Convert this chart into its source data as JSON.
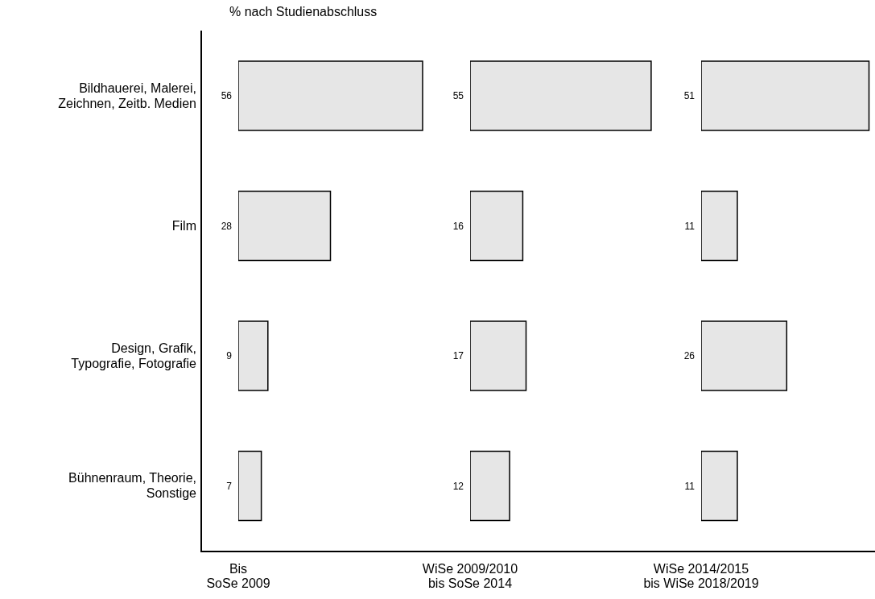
{
  "chart_data": [
    {
      "type": "bar",
      "orientation": "horizontal",
      "title": "% nach Studienabschluss",
      "xlabel": "Bis\nSoSe 2009",
      "categories": [
        "Bildhauerei, Malerei,\nZeichnen, Zeitb. Medien",
        "Film",
        "Design, Grafik,\nTypografie, Fotografie",
        "Bühnenraum, Theorie,\nSonstige"
      ],
      "values": [
        56,
        28,
        9,
        7
      ],
      "color": "#e6e6e6",
      "data_labels": true,
      "tick_labels": "y"
    },
    {
      "type": "bar",
      "orientation": "horizontal",
      "xlabel": "WiSe 2009/2010\nbis SoSe 2014",
      "categories": [
        null,
        null,
        null,
        null
      ],
      "values": [
        55,
        16,
        17,
        12
      ],
      "color": "#e6e6e6",
      "data_labels": true,
      "tick_labels": false
    },
    {
      "type": "bar",
      "orientation": "horizontal",
      "xlabel": "WiSe 2014/2015\nbis WiSe 2018/2019",
      "categories": [
        null,
        null,
        null,
        null
      ],
      "values": [
        51,
        11,
        26,
        11
      ],
      "color": "#e6e6e6",
      "data_labels": true,
      "tick_labels": false
    }
  ]
}
